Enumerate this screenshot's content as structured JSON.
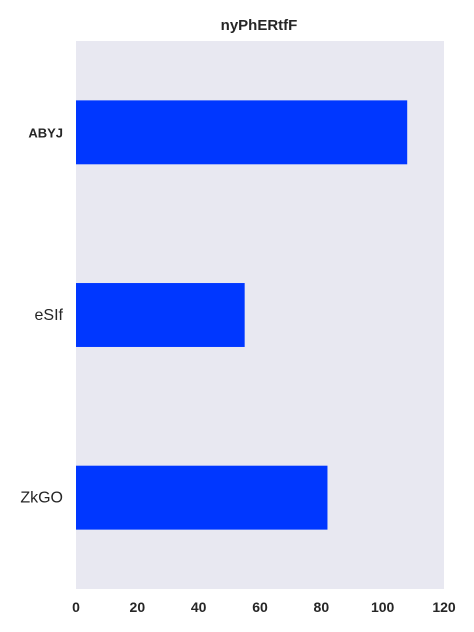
{
  "chart_data": {
    "type": "bar",
    "orientation": "horizontal",
    "title": "nyPhERtfF",
    "categories": [
      "ABYJ",
      "eSIf",
      "ZkGO"
    ],
    "values": [
      108,
      55,
      82
    ],
    "xlim": [
      0,
      120
    ],
    "xticks": [
      0,
      20,
      40,
      60,
      80,
      100,
      120
    ],
    "grid": false,
    "colors": {
      "bar": "#0037ff",
      "plot_background": "#e8e8f1"
    }
  }
}
